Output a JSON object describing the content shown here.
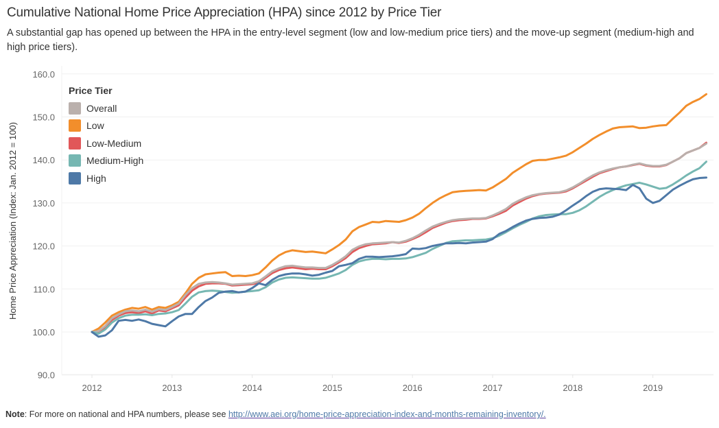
{
  "header": {
    "title": "Cumulative National Home Price Appreciation (HPA) since 2012 by Price Tier",
    "subtitle": "A substantial gap has opened up between the HPA in the entry-level segment (low and low-medium price tiers) and the move-up segment (medium-high and high price tiers)."
  },
  "footer": {
    "note_label": "Note",
    "note_text": ": For more on national and HPA numbers, please see ",
    "link_text": "http://www.aei.org/home-price-appreciation-index-and-months-remaining-inventory/."
  },
  "legend": {
    "title": "Price Tier",
    "items": [
      {
        "label": "Overall",
        "color": "#BAB0AC"
      },
      {
        "label": "Low",
        "color": "#F28E2B"
      },
      {
        "label": "Low-Medium",
        "color": "#E15759"
      },
      {
        "label": "Medium-High",
        "color": "#76B7B2"
      },
      {
        "label": "High",
        "color": "#4E79A7"
      }
    ]
  },
  "chart_data": {
    "type": "line",
    "title": "Cumulative National Home Price Appreciation (HPA) since 2012 by Price Tier",
    "xlabel": "",
    "ylabel": "Home Price Appreciation (Index: Jan. 2012 = 100)",
    "ylim": [
      90,
      160
    ],
    "yticks": [
      "90.0",
      "100.0",
      "110.0",
      "120.0",
      "130.0",
      "140.0",
      "150.0",
      "160.0"
    ],
    "ytick_values": [
      90,
      100,
      110,
      120,
      130,
      140,
      150,
      160
    ],
    "xticks": [
      "2012",
      "2013",
      "2014",
      "2015",
      "2016",
      "2017",
      "2018",
      "2019"
    ],
    "x_start": "2012-01",
    "x_frequency": "monthly",
    "grid": true,
    "legend_position": "top-left",
    "series": [
      {
        "name": "Low",
        "color": "#F28E2B",
        "values": [
          100.0,
          100.8,
          102.2,
          103.8,
          104.6,
          105.2,
          105.6,
          105.4,
          105.8,
          105.2,
          105.8,
          105.6,
          106.2,
          107.0,
          109.0,
          111.2,
          112.6,
          113.4,
          113.6,
          113.8,
          113.9,
          113.0,
          113.1,
          113.0,
          113.2,
          113.6,
          115.0,
          116.6,
          117.8,
          118.6,
          119.0,
          118.8,
          118.6,
          118.7,
          118.5,
          118.3,
          119.2,
          120.2,
          121.5,
          123.4,
          124.4,
          125.0,
          125.6,
          125.5,
          125.8,
          125.7,
          125.6,
          126.0,
          126.6,
          127.5,
          128.8,
          130.0,
          131.0,
          131.8,
          132.5,
          132.7,
          132.8,
          132.9,
          133.0,
          132.9,
          133.6,
          134.6,
          135.6,
          137.0,
          138.0,
          139.0,
          139.8,
          140.0,
          140.0,
          140.3,
          140.6,
          141.0,
          141.8,
          142.8,
          143.8,
          144.9,
          145.8,
          146.6,
          147.3,
          147.6,
          147.7,
          147.8,
          147.4,
          147.5,
          147.8,
          148.0,
          148.1,
          149.6,
          151.0,
          152.6,
          153.5,
          154.2,
          155.3
        ]
      },
      {
        "name": "Low-Medium",
        "color": "#E15759",
        "values": [
          100.0,
          99.8,
          101.0,
          102.8,
          103.8,
          104.4,
          104.6,
          104.4,
          104.8,
          104.3,
          105.0,
          104.8,
          105.5,
          106.2,
          108.0,
          109.6,
          110.6,
          111.2,
          111.3,
          111.3,
          111.2,
          110.8,
          110.9,
          111.0,
          111.1,
          111.5,
          112.6,
          113.7,
          114.4,
          114.8,
          115.0,
          114.8,
          114.6,
          114.7,
          114.6,
          114.6,
          115.3,
          116.2,
          117.2,
          118.6,
          119.5,
          120.0,
          120.4,
          120.5,
          120.6,
          120.9,
          120.7,
          121.0,
          121.6,
          122.3,
          123.2,
          124.2,
          124.8,
          125.4,
          125.8,
          126.0,
          126.1,
          126.3,
          126.3,
          126.4,
          126.9,
          127.5,
          128.2,
          129.4,
          130.2,
          131.0,
          131.6,
          132.0,
          132.2,
          132.3,
          132.4,
          132.7,
          133.4,
          134.3,
          135.2,
          136.1,
          136.9,
          137.4,
          137.9,
          138.3,
          138.5,
          138.8,
          139.1,
          138.7,
          138.5,
          138.5,
          138.8,
          139.6,
          140.4,
          141.6,
          142.2,
          142.8,
          144.0
        ]
      },
      {
        "name": "Overall",
        "color": "#BAB0AC",
        "values": [
          100.0,
          100.2,
          101.4,
          103.2,
          104.1,
          104.8,
          105.0,
          104.8,
          105.2,
          104.7,
          105.3,
          105.1,
          105.8,
          106.6,
          108.6,
          110.2,
          111.2,
          111.5,
          111.6,
          111.5,
          111.3,
          111.0,
          111.1,
          111.2,
          111.3,
          111.8,
          112.9,
          114.1,
          114.8,
          115.3,
          115.4,
          115.2,
          115.0,
          115.0,
          114.9,
          114.9,
          115.6,
          116.5,
          117.6,
          119.1,
          119.9,
          120.4,
          120.6,
          120.7,
          120.8,
          120.9,
          120.8,
          121.2,
          121.8,
          122.6,
          123.6,
          124.5,
          125.1,
          125.6,
          126.0,
          126.2,
          126.3,
          126.4,
          126.4,
          126.5,
          127.1,
          127.8,
          128.6,
          129.8,
          130.6,
          131.3,
          131.8,
          132.1,
          132.3,
          132.4,
          132.5,
          132.9,
          133.6,
          134.5,
          135.5,
          136.4,
          137.1,
          137.6,
          138.0,
          138.3,
          138.5,
          138.9,
          139.2,
          138.8,
          138.6,
          138.6,
          138.9,
          139.6,
          140.4,
          141.6,
          142.2,
          142.8,
          143.8
        ]
      },
      {
        "name": "Medium-High",
        "color": "#76B7B2",
        "values": [
          100.0,
          99.6,
          100.6,
          102.2,
          103.2,
          103.8,
          104.0,
          104.0,
          104.1,
          103.9,
          104.2,
          104.3,
          104.6,
          105.1,
          106.6,
          108.2,
          109.2,
          109.5,
          109.6,
          109.5,
          109.3,
          109.1,
          109.2,
          109.4,
          109.5,
          109.7,
          110.4,
          111.5,
          112.2,
          112.6,
          112.7,
          112.6,
          112.5,
          112.4,
          112.4,
          112.6,
          113.1,
          113.6,
          114.4,
          115.6,
          116.4,
          116.8,
          117.0,
          117.0,
          116.9,
          117.0,
          117.0,
          117.1,
          117.4,
          117.9,
          118.4,
          119.3,
          120.0,
          120.7,
          121.1,
          121.2,
          121.3,
          121.3,
          121.4,
          121.5,
          121.8,
          122.4,
          123.2,
          124.1,
          124.9,
          125.6,
          126.4,
          126.9,
          127.2,
          127.3,
          127.4,
          127.4,
          127.7,
          128.3,
          129.2,
          130.3,
          131.4,
          132.3,
          133.0,
          133.6,
          134.1,
          134.4,
          134.7,
          134.3,
          133.8,
          133.3,
          133.5,
          134.3,
          135.3,
          136.4,
          137.3,
          138.1,
          139.6
        ]
      },
      {
        "name": "High",
        "color": "#4E79A7",
        "values": [
          100.0,
          98.9,
          99.2,
          100.4,
          102.6,
          102.8,
          102.6,
          102.9,
          102.5,
          101.9,
          101.6,
          101.3,
          102.5,
          103.6,
          104.2,
          104.2,
          105.8,
          107.2,
          108.0,
          109.1,
          109.4,
          109.5,
          109.2,
          109.4,
          110.2,
          111.3,
          110.9,
          112.1,
          113.0,
          113.4,
          113.6,
          113.6,
          113.4,
          113.1,
          113.3,
          113.8,
          114.2,
          115.3,
          115.6,
          116.0,
          117.0,
          117.5,
          117.5,
          117.4,
          117.5,
          117.6,
          117.8,
          118.1,
          119.4,
          119.3,
          119.5,
          120.0,
          120.3,
          120.6,
          120.6,
          120.7,
          120.6,
          120.8,
          120.9,
          121.0,
          121.6,
          122.8,
          123.5,
          124.4,
          125.2,
          125.9,
          126.3,
          126.5,
          126.6,
          126.8,
          127.3,
          128.3,
          129.4,
          130.4,
          131.6,
          132.6,
          133.2,
          133.4,
          133.3,
          133.2,
          133.0,
          134.2,
          133.4,
          131.0,
          130.0,
          130.5,
          131.8,
          133.1,
          134.0,
          134.8,
          135.5,
          135.8,
          135.9
        ]
      }
    ]
  }
}
